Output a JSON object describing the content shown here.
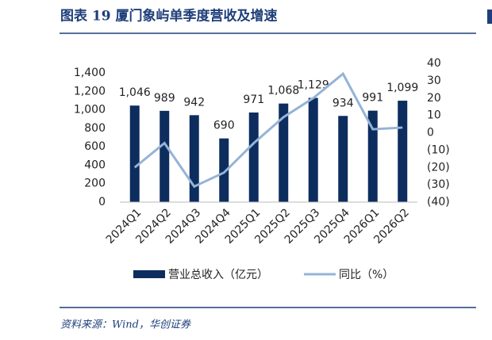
{
  "title": "图表 19 厦门象屿单季度营收及增速",
  "source": "资料来源：Wind，华创证券",
  "chart_data": {
    "type": "bar_line",
    "categories": [
      "2024Q1",
      "2024Q2",
      "2024Q3",
      "2024Q4",
      "2025Q1",
      "2025Q2",
      "2025Q3",
      "2025Q4",
      "2026Q1",
      "2026Q2"
    ],
    "series": [
      {
        "name": "营业总收入（亿元）",
        "type": "bar",
        "color": "#0d2d5e",
        "values": [
          1046,
          989,
          942,
          690,
          971,
          1068,
          1129,
          934,
          991,
          1099
        ],
        "value_labels": [
          "1,046",
          "989",
          "942",
          "690",
          "971",
          "1,068",
          "1,129",
          "934",
          "991",
          "1,099"
        ]
      },
      {
        "name": "同比（%）",
        "type": "line",
        "axis": "y2",
        "color": "#95b3d7",
        "values": [
          -20,
          -6,
          -31,
          -23,
          -6,
          9,
          20,
          34,
          2,
          3
        ]
      }
    ],
    "ylim": [
      0,
      1400
    ],
    "yticks": [
      0,
      200,
      400,
      600,
      800,
      {
        "value": 1000,
        "label": "1,000"
      },
      {
        "value": 1200,
        "label": "1,200"
      },
      {
        "value": 1400,
        "label": "1,400"
      }
    ],
    "y2lim": [
      -40,
      40
    ],
    "y2ticks": [
      {
        "value": -40,
        "label": "(40)"
      },
      {
        "value": -30,
        "label": "(30)"
      },
      {
        "value": -20,
        "label": "(20)"
      },
      {
        "value": -10,
        "label": "(10)"
      },
      0,
      10,
      20,
      30,
      40
    ],
    "y2_negative_tick_color": "#ff0000",
    "legend": "bottom"
  }
}
